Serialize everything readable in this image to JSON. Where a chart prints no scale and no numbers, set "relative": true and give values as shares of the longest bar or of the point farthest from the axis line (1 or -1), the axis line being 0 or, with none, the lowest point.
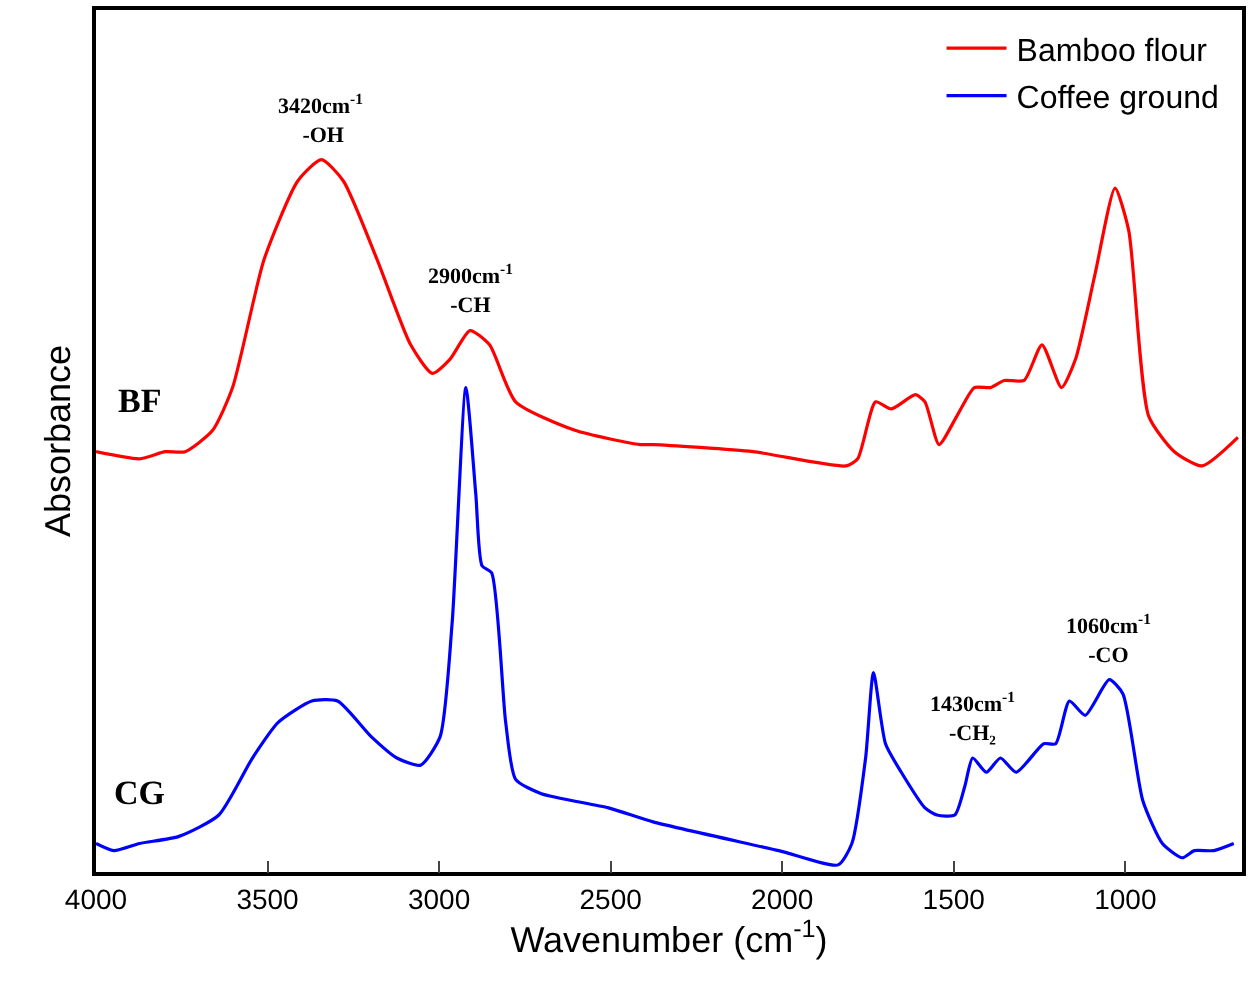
{
  "chart_data": {
    "type": "line",
    "relative": true,
    "xlabel": "Wavenumber (cm$^{-1}$)",
    "ylabel": "Absorbance",
    "xlim": [
      4000,
      660
    ],
    "xticks": [
      4000,
      3500,
      3000,
      2500,
      2000,
      1500,
      1000
    ],
    "legend": "top right",
    "line_style": "solid",
    "marker": "none",
    "series": [
      {
        "name": "Bamboo flour",
        "color": "#ff0000",
        "x": [
          4000,
          3873,
          3798,
          3740,
          3660,
          3602,
          3510,
          3412,
          3343,
          3279,
          3181,
          3083,
          3020,
          2968,
          2910,
          2853,
          2777,
          2604,
          2414,
          2374,
          2085,
          1814,
          1780,
          1728,
          1682,
          1612,
          1584,
          1543,
          1491,
          1440,
          1393,
          1353,
          1295,
          1243,
          1186,
          1145,
          1088,
          1030,
          990,
          932,
          857,
          776,
          672
        ],
        "values": [
          0.59,
          0.58,
          0.59,
          0.59,
          0.62,
          0.68,
          0.86,
          0.97,
          1,
          0.97,
          0.86,
          0.74,
          0.7,
          0.72,
          0.76,
          0.74,
          0.66,
          0.62,
          0.6,
          0.6,
          0.59,
          0.57,
          0.58,
          0.66,
          0.65,
          0.67,
          0.66,
          0.6,
          0.64,
          0.68,
          0.68,
          0.69,
          0.69,
          0.74,
          0.68,
          0.72,
          0.84,
          0.96,
          0.9,
          0.64,
          0.59,
          0.57,
          0.61
        ]
      },
      {
        "name": "Coffee ground",
        "color": "#0000ff",
        "x": [
          4000,
          3948,
          3873,
          3758,
          3642,
          3544,
          3469,
          3371,
          3296,
          3198,
          3123,
          3054,
          2997,
          2962,
          2922,
          2893,
          2875,
          2847,
          2806,
          2777,
          2702,
          2506,
          2374,
          2010,
          1837,
          1797,
          1757,
          1734,
          1699,
          1653,
          1584,
          1549,
          1497,
          1468,
          1445,
          1405,
          1364,
          1318,
          1238,
          1203,
          1163,
          1117,
          1047,
          1007,
          949,
          892,
          834,
          799,
          742,
          684
        ],
        "values": [
          0.04,
          0.03,
          0.04,
          0.05,
          0.08,
          0.16,
          0.21,
          0.24,
          0.24,
          0.19,
          0.16,
          0.15,
          0.19,
          0.35,
          0.68,
          0.53,
          0.43,
          0.42,
          0.21,
          0.13,
          0.11,
          0.09,
          0.07,
          0.03,
          0.01,
          0.04,
          0.16,
          0.28,
          0.18,
          0.14,
          0.09,
          0.08,
          0.08,
          0.12,
          0.16,
          0.14,
          0.16,
          0.14,
          0.18,
          0.18,
          0.24,
          0.22,
          0.27,
          0.25,
          0.1,
          0.04,
          0.02,
          0.03,
          0.03,
          0.04
        ]
      }
    ],
    "annotations": [
      {
        "text": "3420cm$^{-1}$\n -OH",
        "x": 3343,
        "y": 1
      },
      {
        "text": "2900cm$^{-1}$\n-CH",
        "x": 2910,
        "y": 0.76
      },
      {
        "text": "1430cm$^{-1}$\n-CH₂",
        "x": 1445,
        "y": 0.16
      },
      {
        "text": "1060cm$^{-1}$\n-CO",
        "x": 1047,
        "y": 0.27
      },
      {
        "text": "BF",
        "x": 3870,
        "y": 0.59
      },
      {
        "text": "CG",
        "x": 3870,
        "y": 0.04
      }
    ]
  }
}
